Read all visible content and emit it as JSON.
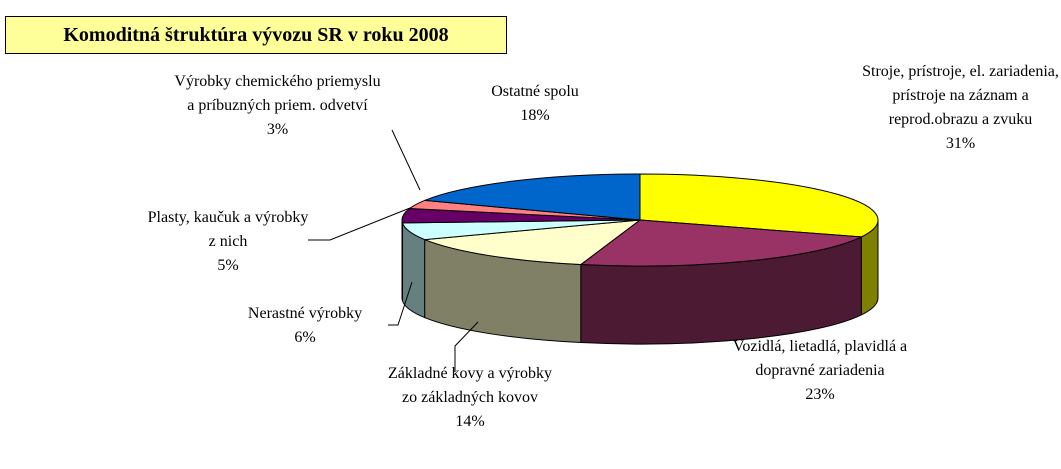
{
  "chart_data": {
    "type": "pie3d",
    "title": "Komoditná štruktúra vývozu SR v roku 2008",
    "categories": [
      "Stroje, prístroje, el. zariadenia, prístroje na záznam a reprod.obrazu a zvuku",
      "Vozidlá, lietadlá, plavidlá a dopravné zariadenia",
      "Základné kovy a výrobky zo základných kovov",
      "Nerastné výrobky",
      "Plasty, kaučuk a výrobky z nich",
      "Výrobky chemického priemyslu a príbuzných priem. odvetví",
      "Ostatné spolu"
    ],
    "values": [
      31,
      23,
      14,
      6,
      5,
      3,
      18
    ],
    "value_labels": [
      "31%",
      "23%",
      "14%",
      "6%",
      "5%",
      "3%",
      "18%"
    ],
    "colors": [
      "#ffff00",
      "#993366",
      "#ffffcc",
      "#ccffff",
      "#660066",
      "#ff8080",
      "#0066cc"
    ]
  }
}
